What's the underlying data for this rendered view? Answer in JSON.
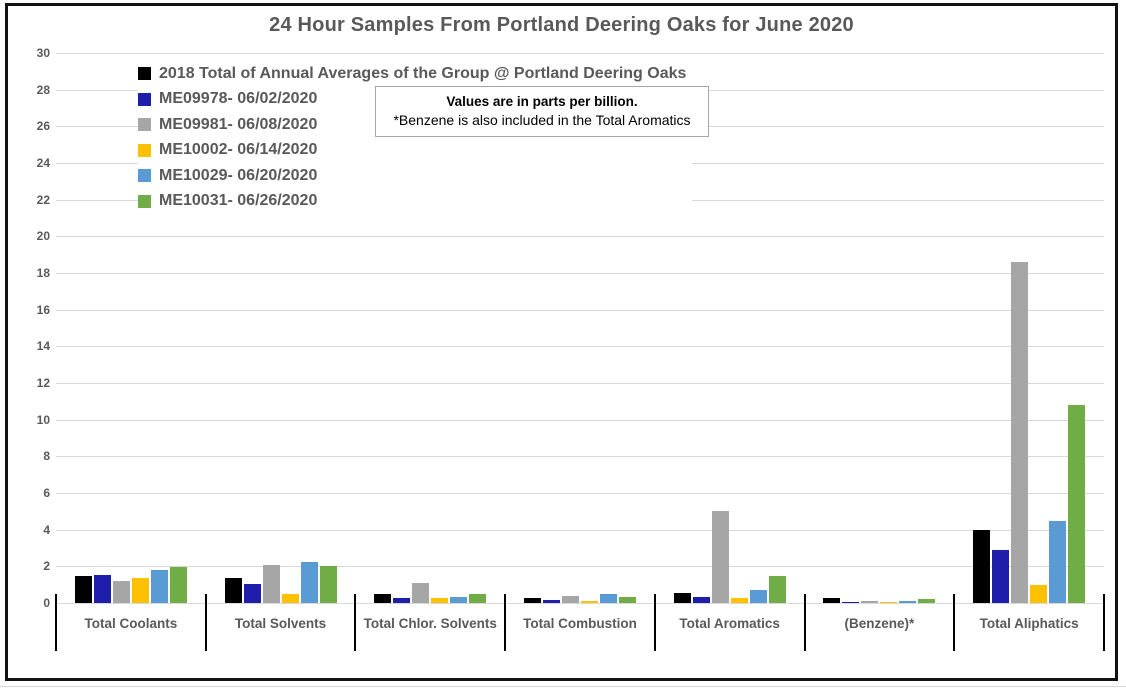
{
  "title": "24 Hour Samples From Portland Deering Oaks for June 2020",
  "note": {
    "line1": "Values are in parts per billion.",
    "line2": "*Benzene is also included in the Total Aromatics"
  },
  "chart_data": {
    "type": "bar",
    "title": "24 Hour Samples From Portland Deering Oaks for June 2020",
    "unit": "parts per billion",
    "categories": [
      "Total Coolants",
      "Total Solvents",
      "Total Chlor. Solvents",
      "Total Combustion",
      "Total Aromatics",
      "(Benzene)*",
      "Total Aliphatics"
    ],
    "series": [
      {
        "name": "2018 Total of Annual Averages of the Group @ Portland Deering Oaks",
        "color": "#000000",
        "values": [
          1.45,
          1.35,
          0.5,
          0.3,
          0.55,
          0.25,
          4.0
        ]
      },
      {
        "name": "ME09978- 06/02/2020",
        "color": "#1e1eaa",
        "values": [
          1.55,
          1.05,
          0.25,
          0.15,
          0.35,
          0.08,
          2.9
        ]
      },
      {
        "name": "ME09981- 06/08/2020",
        "color": "#a6a6a6",
        "values": [
          1.2,
          2.1,
          1.1,
          0.4,
          5.0,
          0.12,
          18.6
        ]
      },
      {
        "name": "ME10002- 06/14/2020",
        "color": "#ffc000",
        "values": [
          1.35,
          0.5,
          0.3,
          0.12,
          0.3,
          0.08,
          1.0
        ]
      },
      {
        "name": "ME10029- 06/20/2020",
        "color": "#5b9bd5",
        "values": [
          1.8,
          2.25,
          0.35,
          0.5,
          0.7,
          0.12,
          4.5
        ]
      },
      {
        "name": "ME10031- 06/26/2020",
        "color": "#70ad47",
        "values": [
          1.95,
          2.0,
          0.5,
          0.33,
          1.45,
          0.2,
          10.8
        ]
      }
    ],
    "ylim": [
      0,
      30
    ],
    "ytick_step": 2,
    "grid": true,
    "gridline_color": "#d9d9d9",
    "axis_text_color": "#595959",
    "legend_position": "top-left-inside"
  }
}
